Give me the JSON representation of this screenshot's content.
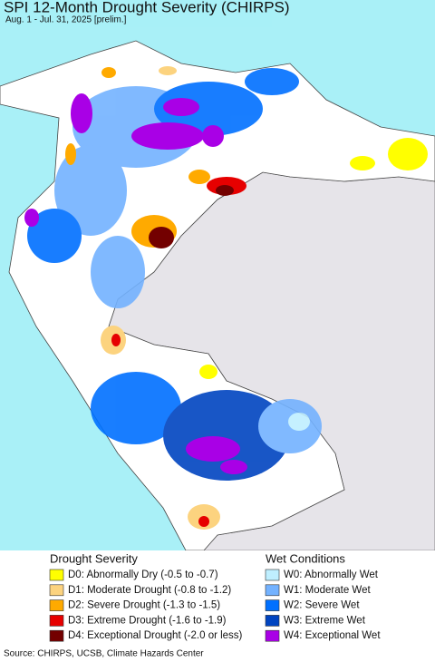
{
  "header": {
    "title": "SPI 12-Month Drought Severity (CHIRPS)",
    "subtitle": "Aug. 1 - Jul. 31, 2025 [prelim.]"
  },
  "legend": {
    "drought": {
      "title": "Drought Severity",
      "items": [
        {
          "label": "D0: Abnormally Dry (-0.5 to -0.7)",
          "color": "#ffff00"
        },
        {
          "label": "D1: Moderate Drought (-0.8 to -1.2)",
          "color": "#fcd37f"
        },
        {
          "label": "D2: Severe Drought (-1.3 to -1.5)",
          "color": "#ffaa00"
        },
        {
          "label": "D3: Extreme Drought (-1.6 to -1.9)",
          "color": "#e60000"
        },
        {
          "label": "D4: Exceptional Drought (-2.0 or less)",
          "color": "#730000"
        }
      ]
    },
    "wet": {
      "title": "Wet Conditions",
      "items": [
        {
          "label": "W0: Abnormally Wet",
          "color": "#bfefff"
        },
        {
          "label": "W1: Moderate Wet",
          "color": "#73b2ff"
        },
        {
          "label": "W2: Severe Wet",
          "color": "#0070ff"
        },
        {
          "label": "W3: Extreme Wet",
          "color": "#0044c0"
        },
        {
          "label": "W4: Exceptional Wet",
          "color": "#a900e6"
        }
      ]
    }
  },
  "source": "Source: CHIRPS, UCSB, Climate Hazards Center"
}
